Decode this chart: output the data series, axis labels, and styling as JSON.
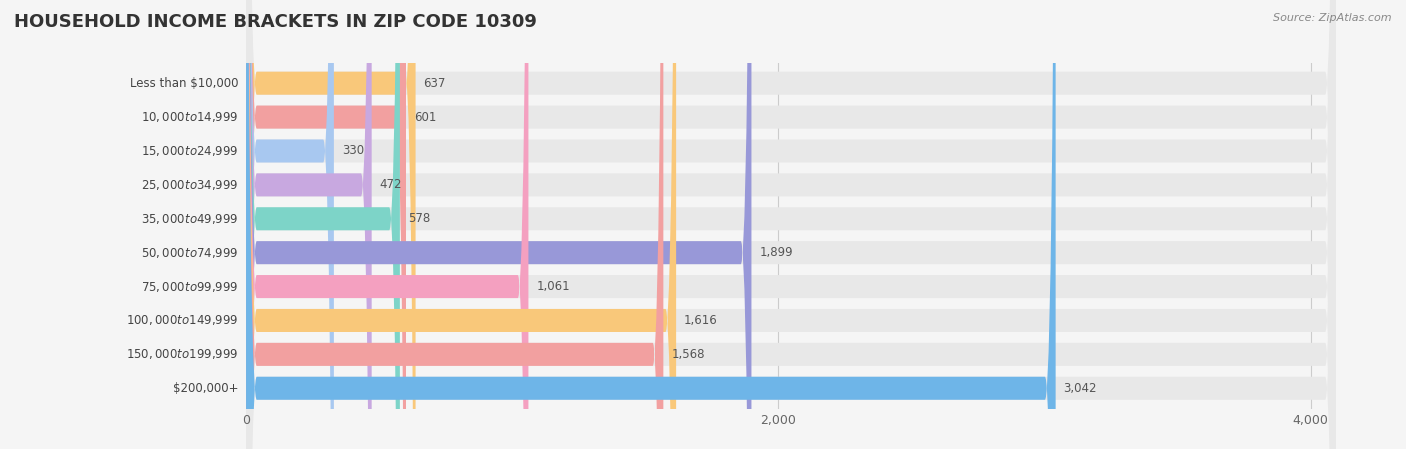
{
  "title": "HOUSEHOLD INCOME BRACKETS IN ZIP CODE 10309",
  "source": "Source: ZipAtlas.com",
  "categories": [
    "Less than $10,000",
    "$10,000 to $14,999",
    "$15,000 to $24,999",
    "$25,000 to $34,999",
    "$35,000 to $49,999",
    "$50,000 to $74,999",
    "$75,000 to $99,999",
    "$100,000 to $149,999",
    "$150,000 to $199,999",
    "$200,000+"
  ],
  "values": [
    637,
    601,
    330,
    472,
    578,
    1899,
    1061,
    1616,
    1568,
    3042
  ],
  "bar_colors": [
    "#F9C87A",
    "#F2A0A0",
    "#A8C8F0",
    "#C8A8E0",
    "#7DD4C8",
    "#9898D8",
    "#F4A0C0",
    "#F9C87A",
    "#F2A0A0",
    "#6EB5E8"
  ],
  "xlim": [
    0,
    4200
  ],
  "xticks": [
    0,
    2000,
    4000
  ],
  "xticklabels": [
    "0",
    "2,000",
    "4,000"
  ],
  "background_color": "#f5f5f5",
  "bar_bg_color": "#e8e8e8",
  "title_fontsize": 13,
  "label_fontsize": 8.5,
  "value_fontsize": 8.5,
  "bar_height": 0.68
}
